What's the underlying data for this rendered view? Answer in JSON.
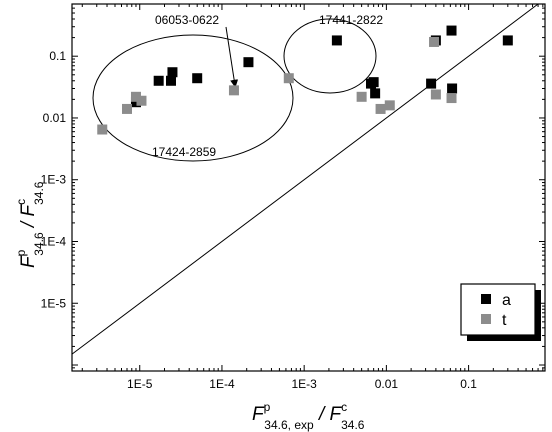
{
  "chart_data": {
    "type": "scatter",
    "title": "",
    "x_scale": "log",
    "y_scale": "log",
    "xlim": [
      1.5e-06,
      0.85
    ],
    "ylim": [
      8e-07,
      0.7
    ],
    "grid": false,
    "legend_position": "bottom-right",
    "x_ticks": [
      {
        "value": 1e-05,
        "label": "1E-5"
      },
      {
        "value": 0.0001,
        "label": "1E-4"
      },
      {
        "value": 0.001,
        "label": "1E-3"
      },
      {
        "value": 0.01,
        "label": "0.01"
      },
      {
        "value": 0.1,
        "label": "0.1"
      }
    ],
    "y_ticks": [
      {
        "value": 1e-05,
        "label": "1E-5"
      },
      {
        "value": 0.0001,
        "label": "1E-4"
      },
      {
        "value": 0.001,
        "label": "1E-3"
      },
      {
        "value": 0.01,
        "label": "0.01"
      },
      {
        "value": 0.1,
        "label": "0.1"
      }
    ],
    "xlabel": {
      "main": "F",
      "sup": "p",
      "sub": "34.6, exp",
      "sep": " / ",
      "main2": "F",
      "sup2": "c",
      "sub2": "34.6"
    },
    "ylabel": {
      "main": "F",
      "sup": "p",
      "sub": "34.6",
      "sep": " / ",
      "main2": "F",
      "sup2": "c",
      "sub2": "34.6"
    },
    "reference_line": "y = x",
    "series": [
      {
        "name": "a",
        "color": "#000000",
        "points": [
          {
            "x": 9e-06,
            "y": 0.018
          },
          {
            "x": 1.7e-05,
            "y": 0.04
          },
          {
            "x": 2.4e-05,
            "y": 0.04
          },
          {
            "x": 2.5e-05,
            "y": 0.055
          },
          {
            "x": 5e-05,
            "y": 0.044
          },
          {
            "x": 0.00021,
            "y": 0.08
          },
          {
            "x": 0.0025,
            "y": 0.18
          },
          {
            "x": 0.0065,
            "y": 0.036
          },
          {
            "x": 0.007,
            "y": 0.038
          },
          {
            "x": 0.0073,
            "y": 0.025
          },
          {
            "x": 0.035,
            "y": 0.036
          },
          {
            "x": 0.04,
            "y": 0.18
          },
          {
            "x": 0.062,
            "y": 0.26
          },
          {
            "x": 0.063,
            "y": 0.03
          },
          {
            "x": 0.3,
            "y": 0.18
          }
        ]
      },
      {
        "name": "t",
        "color": "#8c8c8c",
        "points": [
          {
            "x": 3.5e-06,
            "y": 0.0065
          },
          {
            "x": 7e-06,
            "y": 0.014
          },
          {
            "x": 9e-06,
            "y": 0.022
          },
          {
            "x": 1.05e-05,
            "y": 0.019
          },
          {
            "x": 0.00014,
            "y": 0.028
          },
          {
            "x": 0.00065,
            "y": 0.044
          },
          {
            "x": 0.005,
            "y": 0.022
          },
          {
            "x": 0.0085,
            "y": 0.014
          },
          {
            "x": 0.011,
            "y": 0.016
          },
          {
            "x": 0.038,
            "y": 0.17
          },
          {
            "x": 0.04,
            "y": 0.024
          },
          {
            "x": 0.062,
            "y": 0.021
          }
        ]
      }
    ],
    "annotations": [
      {
        "text": "06053-0622",
        "arrow_to": {
          "x": 0.000145,
          "y": 0.032
        }
      },
      {
        "text": "17441-2822"
      },
      {
        "text": "17424-2859"
      }
    ]
  }
}
